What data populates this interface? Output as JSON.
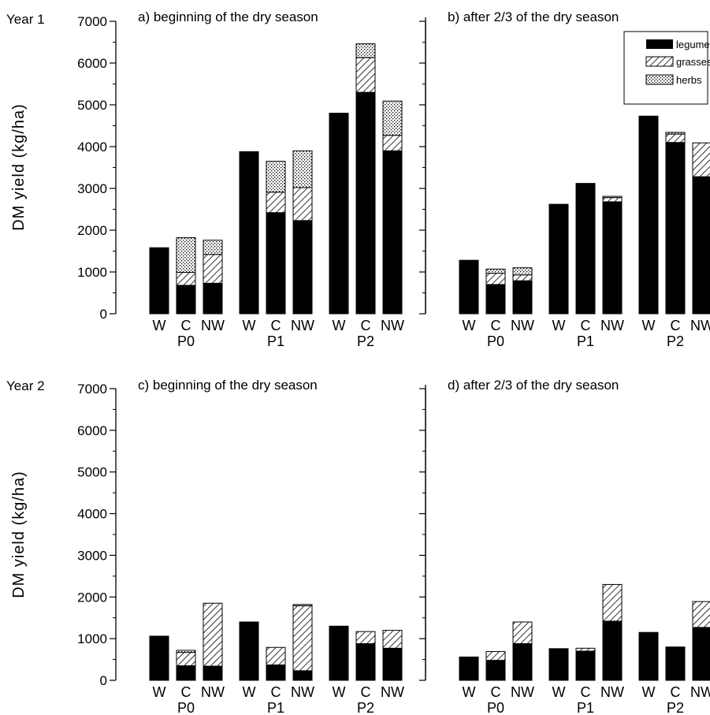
{
  "figure": {
    "rows": [
      {
        "label": "Year 1",
        "ylabel": "DM yield (kg/ha)"
      },
      {
        "label": "Year 2",
        "ylabel": "DM yield (kg/ha)"
      }
    ],
    "legend": {
      "entries": [
        {
          "name": "legume",
          "pattern": "solid"
        },
        {
          "name": "grasses",
          "pattern": "hatch"
        },
        {
          "name": "herbs",
          "pattern": "stipple"
        }
      ]
    },
    "colors": {
      "bar": "#000000",
      "background": "#ffffff"
    }
  },
  "chart_data": [
    {
      "type": "bar",
      "stacked": true,
      "title": "a) beginning of the dry season",
      "ylabel": "DM yield (kg/ha)",
      "ylim": [
        0,
        7000
      ],
      "yticks": [
        0,
        1000,
        2000,
        3000,
        4000,
        5000,
        6000,
        7000
      ],
      "groups": [
        "P0",
        "P1",
        "P2"
      ],
      "categories": [
        "W",
        "C",
        "NW"
      ],
      "series": [
        {
          "name": "legume",
          "values": [
            [
              1580,
              680,
              730
            ],
            [
              3880,
              2420,
              2230
            ],
            [
              4800,
              5300,
              3900
            ]
          ]
        },
        {
          "name": "grasses",
          "values": [
            [
              0,
              310,
              690
            ],
            [
              0,
              490,
              790
            ],
            [
              0,
              830,
              370
            ]
          ]
        },
        {
          "name": "herbs",
          "values": [
            [
              0,
              830,
              340
            ],
            [
              0,
              740,
              880
            ],
            [
              0,
              330,
              820
            ]
          ]
        }
      ]
    },
    {
      "type": "bar",
      "stacked": true,
      "title": "b) after 2/3 of the dry season",
      "ylabel": "",
      "ylim": [
        0,
        7000
      ],
      "yticks": [
        0,
        1000,
        2000,
        3000,
        4000,
        5000,
        6000,
        7000
      ],
      "groups": [
        "P0",
        "P1",
        "P2"
      ],
      "categories": [
        "W",
        "C",
        "NW"
      ],
      "series": [
        {
          "name": "legume",
          "values": [
            [
              1280,
              700,
              790
            ],
            [
              2620,
              3100,
              2680
            ],
            [
              4730,
              4100,
              3280
            ]
          ]
        },
        {
          "name": "grasses",
          "values": [
            [
              0,
              270,
              140
            ],
            [
              0,
              0,
              100
            ],
            [
              0,
              200,
              810
            ]
          ]
        },
        {
          "name": "herbs",
          "values": [
            [
              0,
              100,
              170
            ],
            [
              0,
              20,
              30
            ],
            [
              0,
              40,
              0
            ]
          ]
        }
      ]
    },
    {
      "type": "bar",
      "stacked": true,
      "title": "c) beginning of the dry season",
      "ylabel": "DM yield (kg/ha)",
      "ylim": [
        0,
        7000
      ],
      "yticks": [
        0,
        1000,
        2000,
        3000,
        4000,
        5000,
        6000,
        7000
      ],
      "groups": [
        "P0",
        "P1",
        "P2"
      ],
      "categories": [
        "W",
        "C",
        "NW"
      ],
      "series": [
        {
          "name": "legume",
          "values": [
            [
              1060,
              350,
              340
            ],
            [
              1400,
              370,
              230
            ],
            [
              1300,
              880,
              770
            ]
          ]
        },
        {
          "name": "grasses",
          "values": [
            [
              0,
              320,
              1510
            ],
            [
              0,
              420,
              1560
            ],
            [
              0,
              290,
              430
            ]
          ]
        },
        {
          "name": "herbs",
          "values": [
            [
              0,
              50,
              0
            ],
            [
              0,
              0,
              30
            ],
            [
              0,
              0,
              0
            ]
          ]
        }
      ]
    },
    {
      "type": "bar",
      "stacked": true,
      "title": "d) after 2/3 of the dry season",
      "ylabel": "",
      "ylim": [
        0,
        7000
      ],
      "yticks": [
        0,
        1000,
        2000,
        3000,
        4000,
        5000,
        6000,
        7000
      ],
      "groups": [
        "P0",
        "P1",
        "P2"
      ],
      "categories": [
        "W",
        "C",
        "NW"
      ],
      "series": [
        {
          "name": "legume",
          "values": [
            [
              560,
              480,
              880
            ],
            [
              760,
              700,
              1420
            ],
            [
              1150,
              800,
              1270
            ]
          ]
        },
        {
          "name": "grasses",
          "values": [
            [
              0,
              210,
              520
            ],
            [
              0,
              70,
              880
            ],
            [
              0,
              0,
              620
            ]
          ]
        },
        {
          "name": "herbs",
          "values": [
            [
              0,
              0,
              0
            ],
            [
              0,
              0,
              0
            ],
            [
              0,
              0,
              0
            ]
          ]
        }
      ]
    }
  ]
}
